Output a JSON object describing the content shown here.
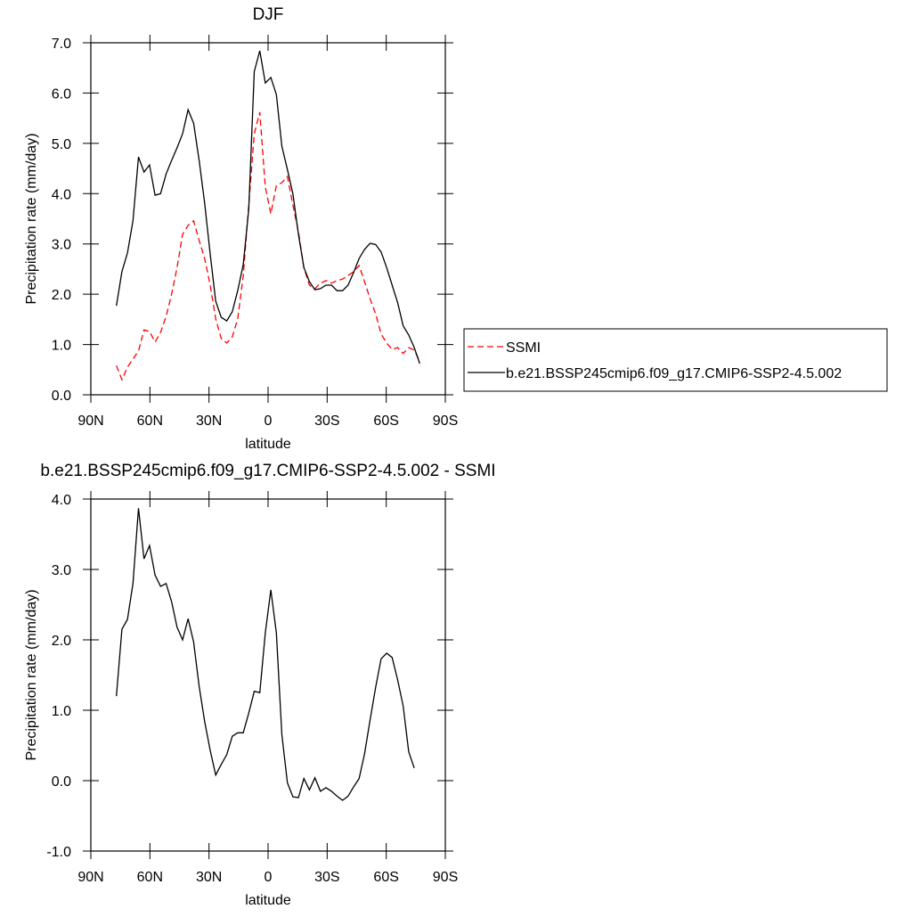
{
  "chart_data": [
    {
      "type": "line",
      "title": "DJF",
      "xlabel": "latitude",
      "ylabel": "Precipitation rate (mm/day)",
      "x": [
        77,
        74.2,
        71.4,
        68.6,
        65.8,
        63,
        60.2,
        57.4,
        54.6,
        51.8,
        49,
        46.2,
        43.4,
        40.6,
        37.8,
        35,
        32.2,
        29.4,
        26.6,
        23.8,
        21,
        18.2,
        15.4,
        12.6,
        9.8,
        7,
        4.2,
        1.4,
        -1.4,
        -4.2,
        -7,
        -9.8,
        -12.6,
        -15.4,
        -18.2,
        -21,
        -23.8,
        -26.6,
        -29.4,
        -32.2,
        -35,
        -37.8,
        -40.6,
        -43.4,
        -46.2,
        -49,
        -51.8,
        -54.6,
        -57.4,
        -60.2,
        -63,
        -65.8,
        -68.6,
        -71.4,
        -74.2,
        -77
      ],
      "series": [
        {
          "name": "SSMI",
          "color": "#ff0000",
          "dashed": true,
          "values": [
            0.58,
            0.3,
            0.55,
            0.71,
            0.87,
            1.29,
            1.26,
            1.05,
            1.24,
            1.56,
            2.0,
            2.53,
            3.19,
            3.37,
            3.46,
            3.07,
            2.71,
            2.18,
            1.51,
            1.12,
            1.03,
            1.15,
            1.51,
            2.36,
            3.77,
            5.19,
            5.62,
            4.13,
            3.6,
            4.16,
            4.22,
            4.34,
            3.77,
            3.24,
            2.53,
            2.18,
            2.11,
            2.22,
            2.27,
            2.22,
            2.27,
            2.3,
            2.37,
            2.45,
            2.57,
            2.25,
            1.91,
            1.61,
            1.21,
            1.03,
            0.9,
            0.94,
            0.82,
            0.94,
            0.89,
            0.67
          ]
        },
        {
          "name": "b.e21.BSSP245cmip6.f09_g17.CMIP6-SSP2-4.5.002",
          "color": "#000000",
          "dashed": false,
          "values": [
            1.77,
            2.45,
            2.82,
            3.46,
            4.73,
            4.43,
            4.57,
            3.97,
            4.0,
            4.39,
            4.66,
            4.91,
            5.19,
            5.67,
            5.4,
            4.66,
            3.81,
            2.8,
            1.86,
            1.54,
            1.47,
            1.65,
            2.07,
            2.59,
            3.69,
            6.43,
            6.84,
            6.2,
            6.31,
            5.97,
            4.94,
            4.48,
            3.99,
            3.19,
            2.53,
            2.25,
            2.09,
            2.11,
            2.18,
            2.18,
            2.07,
            2.07,
            2.18,
            2.43,
            2.71,
            2.89,
            3.01,
            2.99,
            2.84,
            2.53,
            2.18,
            1.83,
            1.37,
            1.19,
            0.94,
            0.62
          ]
        }
      ],
      "xlim": [
        90,
        -90
      ],
      "xticks": [
        {
          "value": 90,
          "label": "90N"
        },
        {
          "value": 60,
          "label": "60N"
        },
        {
          "value": 30,
          "label": "30N"
        },
        0,
        {
          "value": -30,
          "label": "30S"
        },
        {
          "value": -60,
          "label": "60S"
        },
        {
          "value": -90,
          "label": "90S"
        }
      ],
      "ylim": [
        0,
        7
      ],
      "yticks": [
        {
          "value": 0,
          "label": "0.0"
        },
        {
          "value": 1,
          "label": "1.0"
        },
        {
          "value": 2,
          "label": "2.0"
        },
        {
          "value": 3,
          "label": "3.0"
        },
        {
          "value": 4,
          "label": "4.0"
        },
        {
          "value": 5,
          "label": "5.0"
        },
        {
          "value": 6,
          "label": "6.0"
        },
        {
          "value": 7,
          "label": "7.0"
        }
      ],
      "legend": "right"
    },
    {
      "type": "line",
      "title": "b.e21.BSSP245cmip6.f09_g17.CMIP6-SSP2-4.5.002 - SSMI",
      "xlabel": "latitude",
      "ylabel": "Precipitation rate (mm/day)",
      "x": [
        77,
        74.2,
        71.4,
        68.6,
        65.8,
        63,
        60.2,
        57.4,
        54.6,
        51.8,
        49,
        46.2,
        43.4,
        40.6,
        37.8,
        35,
        32.2,
        29.4,
        26.6,
        23.8,
        21,
        18.2,
        15.4,
        12.6,
        9.8,
        7,
        4.2,
        1.4,
        -1.4,
        -4.2,
        -7,
        -9.8,
        -12.6,
        -15.4,
        -18.2,
        -21,
        -23.8,
        -26.6,
        -29.4,
        -32.2,
        -35,
        -37.8,
        -40.6,
        -43.4,
        -46.2,
        -49,
        -51.8,
        -54.6,
        -57.4,
        -60.2,
        -63,
        -65.8,
        -68.6,
        -71.4,
        -74.2
      ],
      "values": [
        1.2,
        2.15,
        2.29,
        2.8,
        3.87,
        3.15,
        3.34,
        2.92,
        2.76,
        2.8,
        2.54,
        2.18,
        2.0,
        2.3,
        1.97,
        1.34,
        0.84,
        0.43,
        0.08,
        0.23,
        0.37,
        0.63,
        0.68,
        0.68,
        0.96,
        1.27,
        1.25,
        2.1,
        2.71,
        2.1,
        0.65,
        -0.03,
        -0.23,
        -0.24,
        0.03,
        -0.13,
        0.04,
        -0.15,
        -0.1,
        -0.15,
        -0.22,
        -0.28,
        -0.22,
        -0.09,
        0.03,
        0.38,
        0.86,
        1.32,
        1.73,
        1.81,
        1.75,
        1.43,
        1.06,
        0.41,
        0.18
      ],
      "color": "#000000",
      "xlim": [
        90,
        -90
      ],
      "xticks": [
        {
          "value": 90,
          "label": "90N"
        },
        {
          "value": 60,
          "label": "60N"
        },
        {
          "value": 30,
          "label": "30N"
        },
        0,
        {
          "value": -30,
          "label": "30S"
        },
        {
          "value": -60,
          "label": "60S"
        },
        {
          "value": -90,
          "label": "90S"
        }
      ],
      "ylim": [
        -1,
        4
      ],
      "yticks": [
        {
          "value": -1,
          "label": "-1.0"
        },
        {
          "value": 0,
          "label": "0.0"
        },
        {
          "value": 1,
          "label": "1.0"
        },
        {
          "value": 2,
          "label": "2.0"
        },
        {
          "value": 3,
          "label": "3.0"
        },
        {
          "value": 4,
          "label": "4.0"
        }
      ]
    }
  ]
}
